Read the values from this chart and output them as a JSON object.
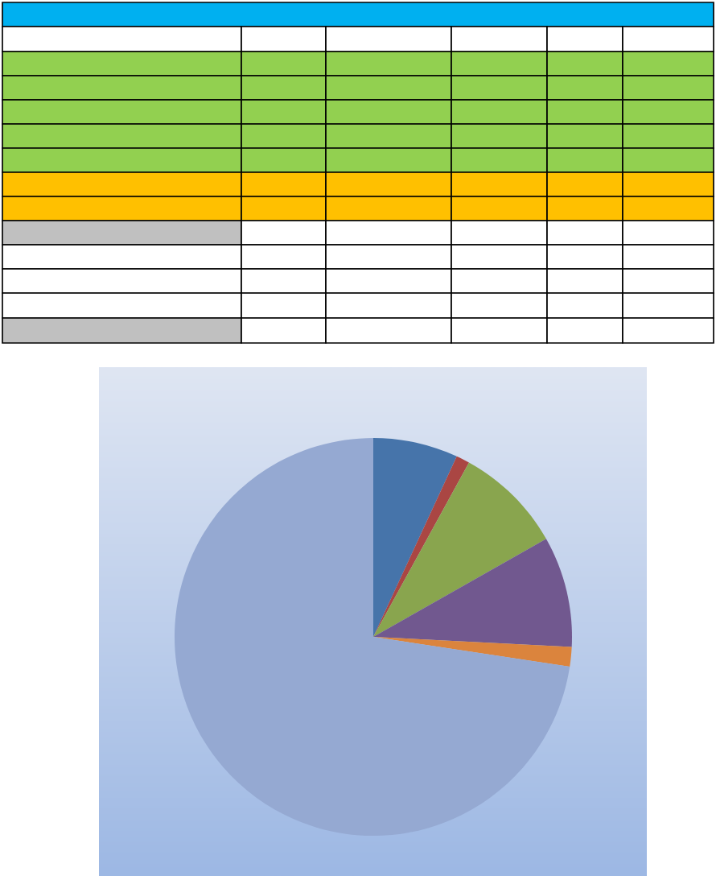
{
  "chart_data": {
    "type": "pie",
    "categories": [
      null,
      null,
      null,
      null,
      null,
      null
    ],
    "values": [
      6.9,
      1.1,
      8.8,
      9.0,
      1.6,
      72.6
    ],
    "colors": [
      "#4674aa",
      "#aa4643",
      "#89a54e",
      "#71588f",
      "#db843d",
      "#95a9d2"
    ]
  }
}
